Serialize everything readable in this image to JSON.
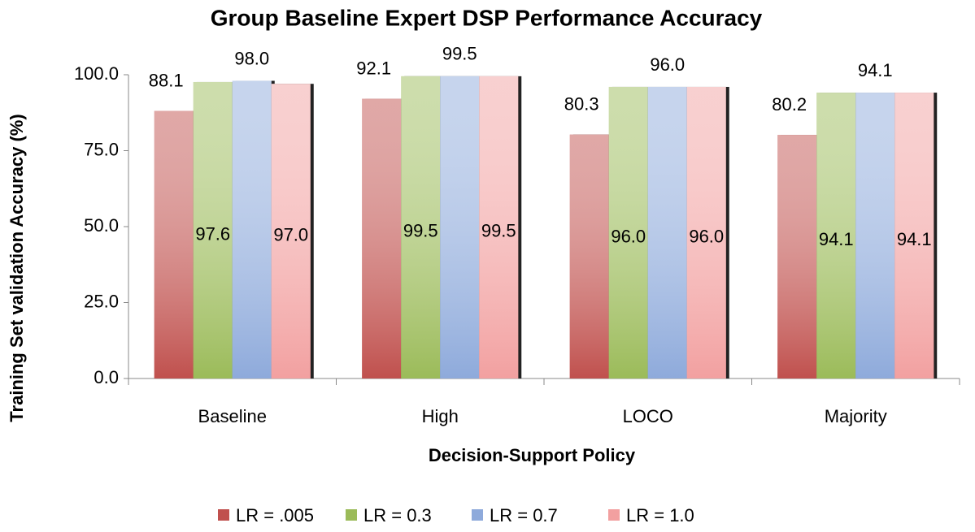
{
  "chart_data": {
    "type": "bar",
    "title": "Group Baseline Expert DSP Performance Accuracy",
    "x_label": "Decision-Support Policy",
    "y_label": "Training Set validation Accuracy (%)",
    "categories": [
      "Baseline",
      "High",
      "LOCO",
      "Majority"
    ],
    "series": [
      {
        "name": "LR = .005",
        "color": "#c0504d",
        "values": [
          88.1,
          92.1,
          80.3,
          80.2
        ]
      },
      {
        "name": "LR = 0.3",
        "color": "#9bbb59",
        "values": [
          97.6,
          99.5,
          96.0,
          94.1
        ],
        "value_labels": [
          "97.6",
          "99.5",
          "96.0",
          "94.1"
        ]
      },
      {
        "name": "LR = 0.7",
        "color": "#8eaadb",
        "values": [
          98.0,
          99.5,
          96.0,
          94.1
        ],
        "value_labels": [
          "98.0",
          "99.5",
          "96.0",
          "94.1"
        ]
      },
      {
        "name": "LR = 1.0",
        "color": "#f2a0a0",
        "values": [
          97.0,
          99.5,
          96.0,
          94.1
        ],
        "value_labels": [
          "97.0",
          "99.5",
          "96.0",
          "94.1"
        ]
      }
    ],
    "ylim": [
      0,
      100
    ],
    "yticks": [
      {
        "value": 0,
        "label": "0.0"
      },
      {
        "value": 25,
        "label": "25.0"
      },
      {
        "value": 50,
        "label": "50.0"
      },
      {
        "value": 75,
        "label": "75.0"
      },
      {
        "value": 100,
        "label": "100.0"
      }
    ],
    "legend": "bottom"
  }
}
